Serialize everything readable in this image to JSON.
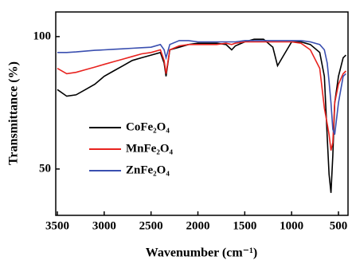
{
  "chart_data": {
    "type": "line",
    "xlabel": "Wavenumber (cm⁻¹)",
    "ylabel": "Transmittance (%)",
    "x": [
      3500,
      3400,
      3300,
      3200,
      3100,
      3000,
      2900,
      2800,
      2700,
      2600,
      2500,
      2400,
      2360,
      2340,
      2300,
      2200,
      2100,
      2000,
      1900,
      1800,
      1700,
      1640,
      1600,
      1500,
      1400,
      1300,
      1200,
      1150,
      1100,
      1000,
      900,
      800,
      700,
      650,
      620,
      600,
      580,
      560,
      540,
      500,
      450,
      420
    ],
    "series": [
      {
        "name": "CoFe₂O₄",
        "color": "#000000",
        "values": [
          80,
          77.5,
          78,
          80,
          82,
          85,
          87,
          89,
          91,
          92,
          93,
          94,
          90,
          85,
          95,
          96,
          97,
          97.5,
          97.5,
          97.5,
          97,
          95,
          96.5,
          98,
          99,
          99,
          96,
          89,
          92,
          98,
          98,
          97,
          94,
          85,
          62,
          48,
          41,
          55,
          75,
          85,
          92,
          93
        ]
      },
      {
        "name": "MnFe₂O₄",
        "color": "#e8231f",
        "values": [
          88,
          86,
          86.5,
          87.5,
          88.5,
          89.5,
          90.5,
          91.5,
          92.5,
          93.5,
          94,
          95,
          91,
          86,
          95,
          96.5,
          97,
          97,
          97,
          97,
          97.5,
          97,
          97.5,
          98,
          98,
          98,
          98,
          98,
          98,
          98,
          97.5,
          95,
          88,
          73,
          67,
          63,
          57,
          60,
          75,
          82,
          86,
          87
        ]
      },
      {
        "name": "ZnFe₂O₄",
        "color": "#3a4fb0",
        "values": [
          94,
          94,
          94.2,
          94.5,
          94.8,
          95,
          95.2,
          95.4,
          95.6,
          95.8,
          96,
          97,
          95,
          92,
          97,
          98.5,
          98.5,
          98,
          98,
          98,
          98,
          98,
          98,
          98.5,
          98.5,
          98.5,
          98.5,
          98.5,
          98.5,
          98.5,
          98.5,
          98,
          97,
          95,
          90,
          83,
          75,
          65,
          63,
          75,
          85,
          86
        ]
      }
    ],
    "xlim": [
      3517,
      398
    ],
    "ylim": [
      32.5,
      109.3
    ],
    "xticks": [
      3500,
      3000,
      2500,
      2000,
      1500,
      1000,
      500
    ],
    "yticks": [
      50,
      100
    ]
  }
}
